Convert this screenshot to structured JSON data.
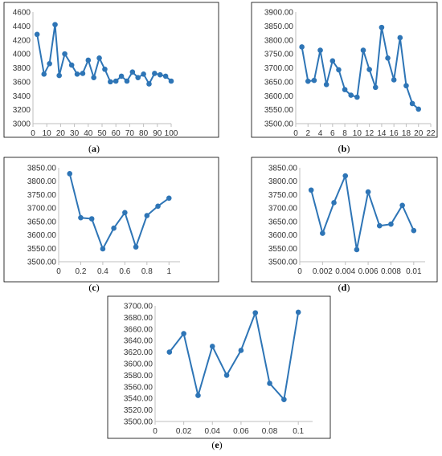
{
  "colors": {
    "series": "#2e75b6",
    "axis": "#bfbfbf",
    "frame": "#000000"
  },
  "chart_data": [
    {
      "type": "line",
      "caption_open": "(",
      "caption_letter": "a",
      "caption_close": ")",
      "x": [
        3,
        8,
        12,
        16,
        19,
        23,
        28,
        32,
        36,
        40,
        44,
        48,
        52,
        56,
        60,
        64,
        68,
        72,
        76,
        80,
        84,
        88,
        92,
        96,
        100
      ],
      "y": [
        4280,
        3710,
        3860,
        4420,
        3690,
        4000,
        3840,
        3710,
        3720,
        3910,
        3660,
        3940,
        3780,
        3600,
        3610,
        3680,
        3610,
        3740,
        3660,
        3710,
        3570,
        3720,
        3700,
        3680,
        3610
      ],
      "xlim": [
        0,
        100
      ],
      "ylim": [
        3000,
        4600
      ],
      "xticks": [
        0,
        10,
        20,
        30,
        40,
        50,
        60,
        70,
        80,
        90,
        100
      ],
      "xtick_labels": [
        "0",
        "10",
        "20",
        "30",
        "40",
        "50",
        "60",
        "70",
        "80",
        "90",
        "100"
      ],
      "yticks": [
        3000,
        3200,
        3400,
        3600,
        3800,
        4000,
        4200,
        4400,
        4600
      ],
      "ytick_labels": [
        "3000",
        "3200",
        "3400",
        "3600",
        "3800",
        "4000",
        "4200",
        "4400",
        "4600"
      ]
    },
    {
      "type": "line",
      "caption_open": "(",
      "caption_letter": "b",
      "caption_close": ")",
      "x": [
        1,
        2,
        3,
        4,
        5,
        6,
        7,
        8,
        9,
        10,
        11,
        12,
        13,
        14,
        15,
        16,
        17,
        18,
        19,
        20
      ],
      "y": [
        3775,
        3652,
        3655,
        3763,
        3640,
        3725,
        3693,
        3622,
        3602,
        3595,
        3763,
        3694,
        3630,
        3845,
        3735,
        3657,
        3808,
        3636,
        3572,
        3552
      ],
      "xlim": [
        0,
        22
      ],
      "ylim": [
        3500,
        3900
      ],
      "xticks": [
        0,
        2,
        4,
        6,
        8,
        10,
        12,
        14,
        16,
        18,
        20,
        22
      ],
      "xtick_labels": [
        "0",
        "2",
        "4",
        "6",
        "8",
        "10",
        "12",
        "14",
        "16",
        "18",
        "20",
        "22"
      ],
      "yticks": [
        3500,
        3550,
        3600,
        3650,
        3700,
        3750,
        3800,
        3850,
        3900
      ],
      "ytick_labels": [
        "3500.00",
        "3550.00",
        "3600.00",
        "3650.00",
        "3700.00",
        "3750.00",
        "3800.00",
        "3850.00",
        "3900.00"
      ]
    },
    {
      "type": "line",
      "caption_open": "(",
      "caption_letter": "c",
      "caption_close": ")",
      "x": [
        0.1,
        0.2,
        0.3,
        0.4,
        0.5,
        0.6,
        0.7,
        0.8,
        0.9,
        1.0
      ],
      "y": [
        3828,
        3664,
        3660,
        3548,
        3625,
        3683,
        3555,
        3672,
        3707,
        3737
      ],
      "xlim": [
        0,
        1.1
      ],
      "ylim": [
        3500,
        3850
      ],
      "xticks": [
        0,
        0.2,
        0.4,
        0.6,
        0.8,
        1.0
      ],
      "xtick_labels": [
        "0",
        "0.2",
        "0.4",
        "0.6",
        "0.8",
        "1"
      ],
      "yticks": [
        3500,
        3550,
        3600,
        3650,
        3700,
        3750,
        3800,
        3850
      ],
      "ytick_labels": [
        "3500.00",
        "3550.00",
        "3600.00",
        "3650.00",
        "3700.00",
        "3750.00",
        "3800.00",
        "3850.00"
      ]
    },
    {
      "type": "line",
      "caption_open": "(",
      "caption_letter": "d",
      "caption_close": ")",
      "x": [
        0.001,
        0.002,
        0.003,
        0.004,
        0.005,
        0.006,
        0.007,
        0.008,
        0.009,
        0.01
      ],
      "y": [
        3767,
        3606,
        3720,
        3820,
        3545,
        3760,
        3634,
        3640,
        3710,
        3616
      ],
      "xlim": [
        0,
        0.011
      ],
      "ylim": [
        3500,
        3850
      ],
      "xticks": [
        0,
        0.002,
        0.004,
        0.006,
        0.008,
        0.01
      ],
      "xtick_labels": [
        "0",
        "0.002",
        "0.004",
        "0.006",
        "0.008",
        "0.01"
      ],
      "yticks": [
        3500,
        3550,
        3600,
        3650,
        3700,
        3750,
        3800,
        3850
      ],
      "ytick_labels": [
        "3500.00",
        "3550.00",
        "3600.00",
        "3650.00",
        "3700.00",
        "3750.00",
        "3800.00",
        "3850.00"
      ]
    },
    {
      "type": "line",
      "caption_open": "(",
      "caption_letter": "e",
      "caption_close": ")",
      "x": [
        0.01,
        0.02,
        0.03,
        0.04,
        0.05,
        0.06,
        0.07,
        0.08,
        0.09,
        0.1
      ],
      "y": [
        3620,
        3652,
        3545,
        3630,
        3580,
        3623,
        3688,
        3566,
        3538,
        3689
      ],
      "xlim": [
        0,
        0.11
      ],
      "ylim": [
        3500,
        3700
      ],
      "xticks": [
        0,
        0.02,
        0.04,
        0.06,
        0.08,
        0.1
      ],
      "xtick_labels": [
        "0",
        "0.02",
        "0.04",
        "0.06",
        "0.08",
        "0.1"
      ],
      "yticks": [
        3500,
        3520,
        3540,
        3560,
        3580,
        3600,
        3620,
        3640,
        3660,
        3680,
        3700
      ],
      "ytick_labels": [
        "3500.00",
        "3520.00",
        "3540.00",
        "3560.00",
        "3580.00",
        "3600.00",
        "3620.00",
        "3640.00",
        "3660.00",
        "3680.00",
        "3700.00"
      ]
    }
  ]
}
